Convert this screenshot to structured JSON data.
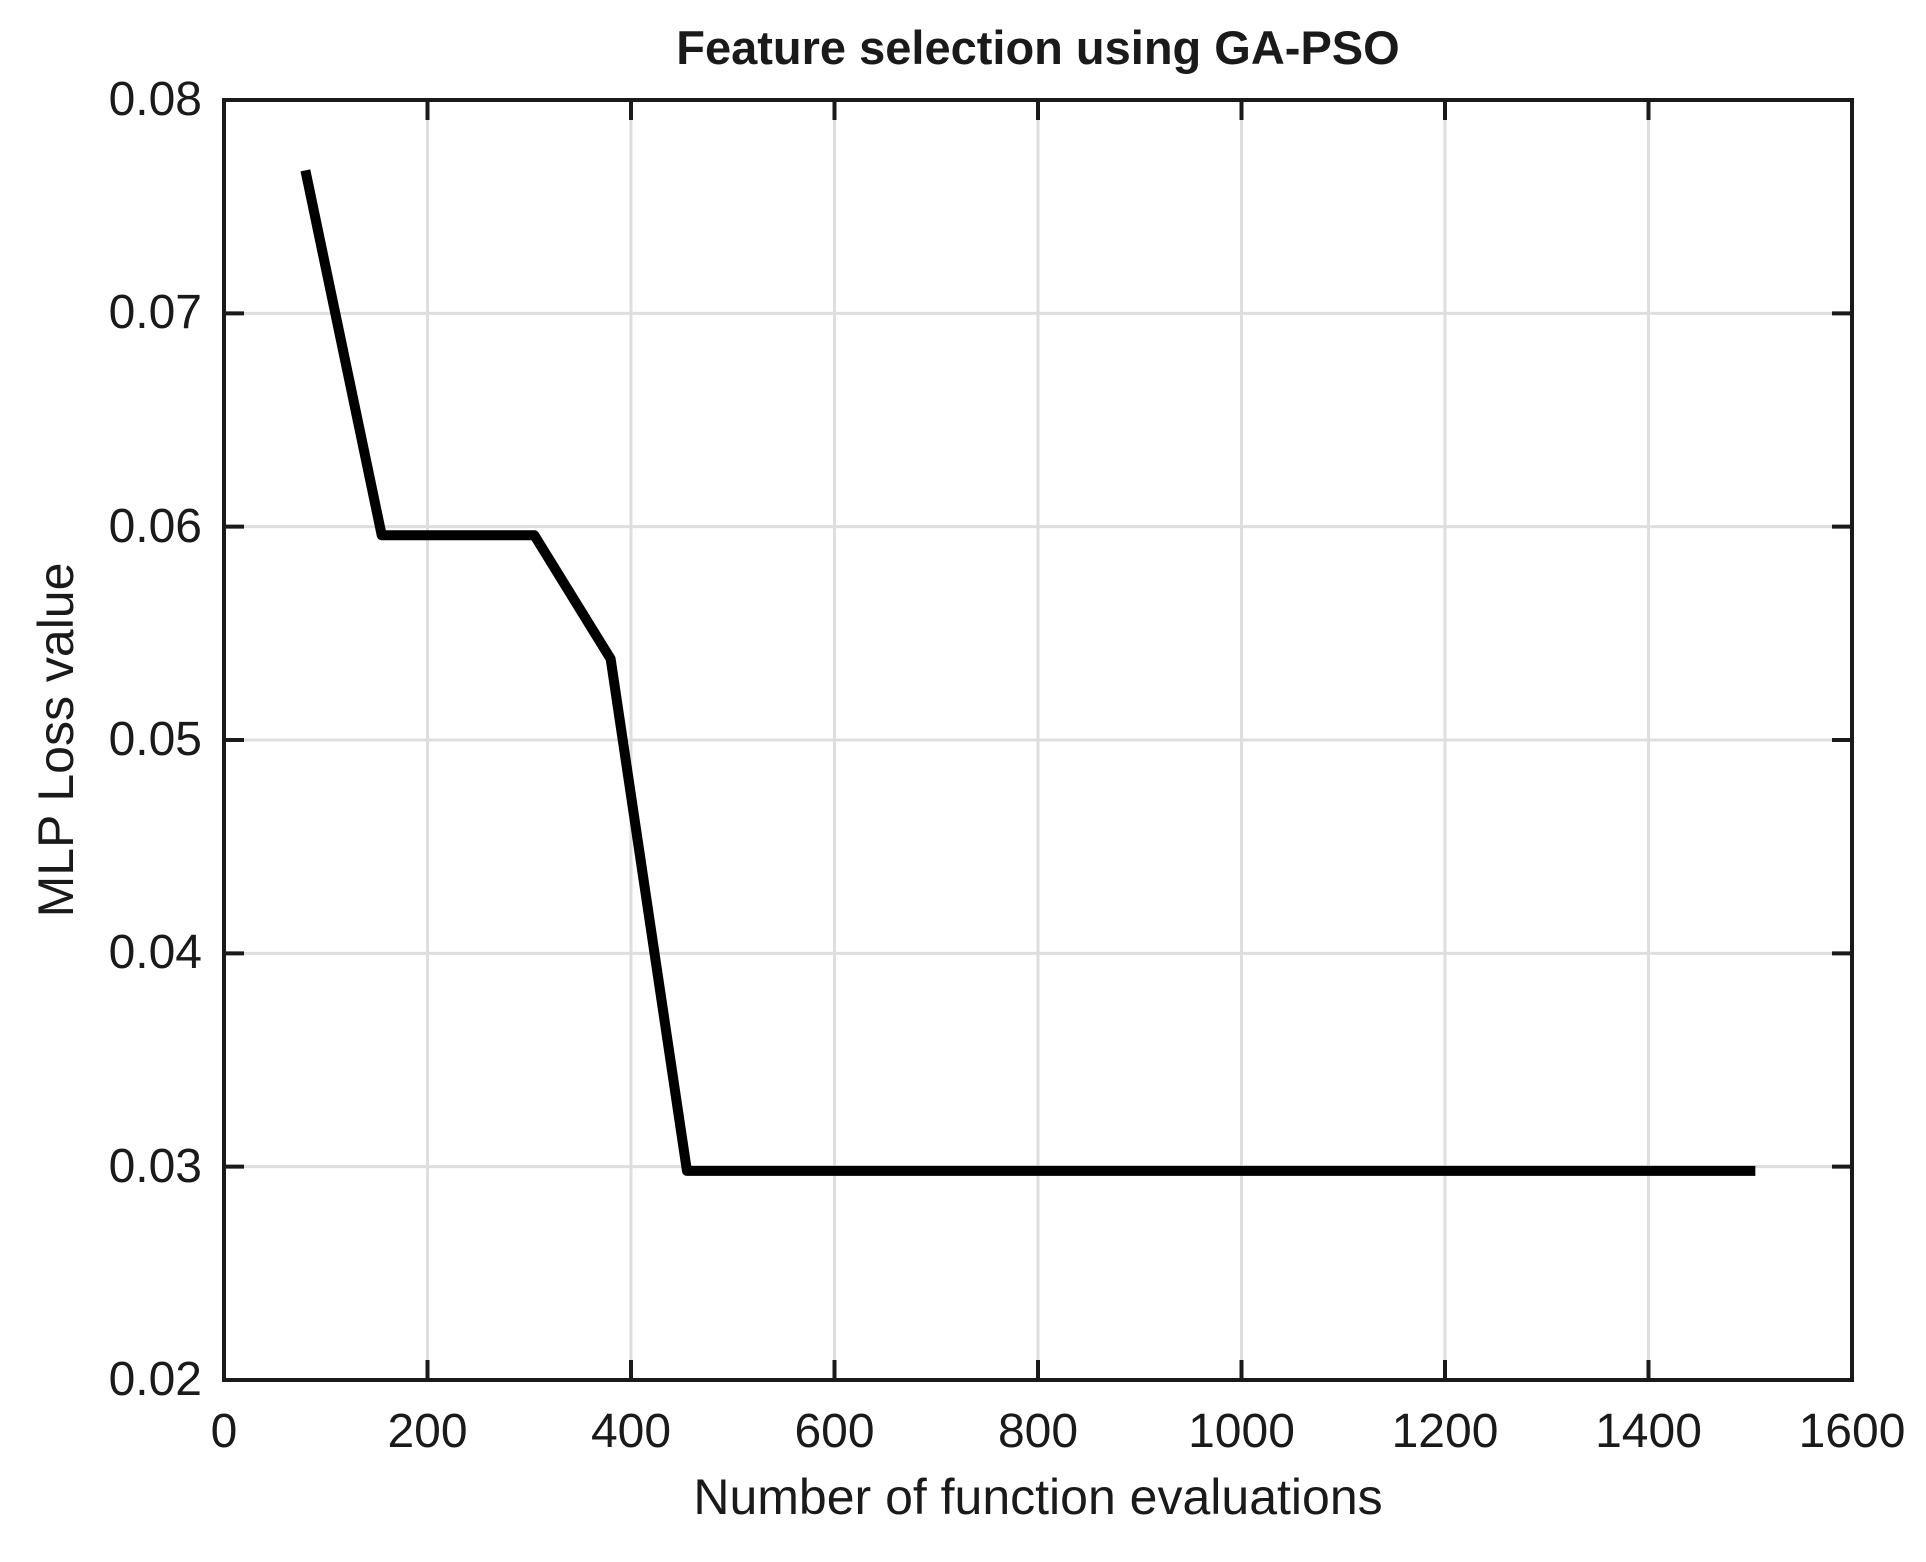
{
  "chart_data": {
    "type": "line",
    "title": "Feature selection using GA-PSO",
    "xlabel": "Number of function evaluations",
    "ylabel": "MLP Loss value",
    "xlim": [
      0,
      1600
    ],
    "ylim": [
      0.02,
      0.08
    ],
    "x_ticks": [
      0,
      200,
      400,
      600,
      800,
      1000,
      1200,
      1400,
      1600
    ],
    "x_tick_labels": [
      "0",
      "200",
      "400",
      "600",
      "800",
      "1000",
      "1200",
      "1400",
      "1600"
    ],
    "y_ticks": [
      0.02,
      0.03,
      0.04,
      0.05,
      0.06,
      0.07,
      0.08
    ],
    "y_tick_labels": [
      "0.02",
      "0.03",
      "0.04",
      "0.05",
      "0.06",
      "0.07",
      "0.08"
    ],
    "grid": true,
    "legend_position": "none",
    "series": [
      {
        "color": "#000000",
        "line_width": 10,
        "points": [
          {
            "x": 80,
            "y": 0.0767
          },
          {
            "x": 155,
            "y": 0.0596
          },
          {
            "x": 305,
            "y": 0.0596
          },
          {
            "x": 380,
            "y": 0.0538
          },
          {
            "x": 455,
            "y": 0.0298
          },
          {
            "x": 1505,
            "y": 0.0298
          }
        ]
      }
    ],
    "colors": {
      "axis": "#1a1a1a",
      "grid": "#dedede",
      "text": "#1a1a1a",
      "background": "#ffffff"
    }
  }
}
